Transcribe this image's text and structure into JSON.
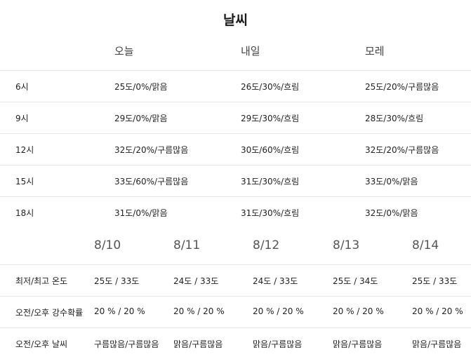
{
  "title": "날씨",
  "hourly": {
    "columns": [
      "오늘",
      "내일",
      "모레"
    ],
    "rows": [
      {
        "time": "6시",
        "cells": [
          "25도/0%/맑음",
          "26도/30%/흐림",
          "25도/20%/구름많음"
        ]
      },
      {
        "time": "9시",
        "cells": [
          "29도/0%/맑음",
          "29도/30%/흐림",
          "28도/30%/흐림"
        ]
      },
      {
        "time": "12시",
        "cells": [
          "32도/20%/구름많음",
          "30도/60%/흐림",
          "32도/20%/구름많음"
        ]
      },
      {
        "time": "15시",
        "cells": [
          "33도/60%/구름많음",
          "31도/30%/흐림",
          "33도/0%/맑음"
        ]
      },
      {
        "time": "18시",
        "cells": [
          "31도/0%/맑음",
          "31도/30%/흐림",
          "32도/0%/맑음"
        ]
      }
    ]
  },
  "daily": {
    "dates": [
      "8/10",
      "8/11",
      "8/12",
      "8/13",
      "8/14"
    ],
    "rows": [
      {
        "label": "최저/최고 온도",
        "cells": [
          "25도 / 33도",
          "24도 / 33도",
          "24도 / 33도",
          "25도 / 34도",
          "25도 / 33도"
        ]
      },
      {
        "label": "오전/오후 강수확률",
        "cells": [
          "20 % / 20 %",
          "20 % / 20 %",
          "20 % / 20 %",
          "20 % / 20 %",
          "20 % / 20 %"
        ]
      },
      {
        "label": "오전/오후 날씨",
        "cells": [
          "구름많음/구름많음",
          "맑음/구름많음",
          "맑음/구름많음",
          "맑음/구름많음",
          "맑음/구름많음"
        ]
      }
    ]
  }
}
